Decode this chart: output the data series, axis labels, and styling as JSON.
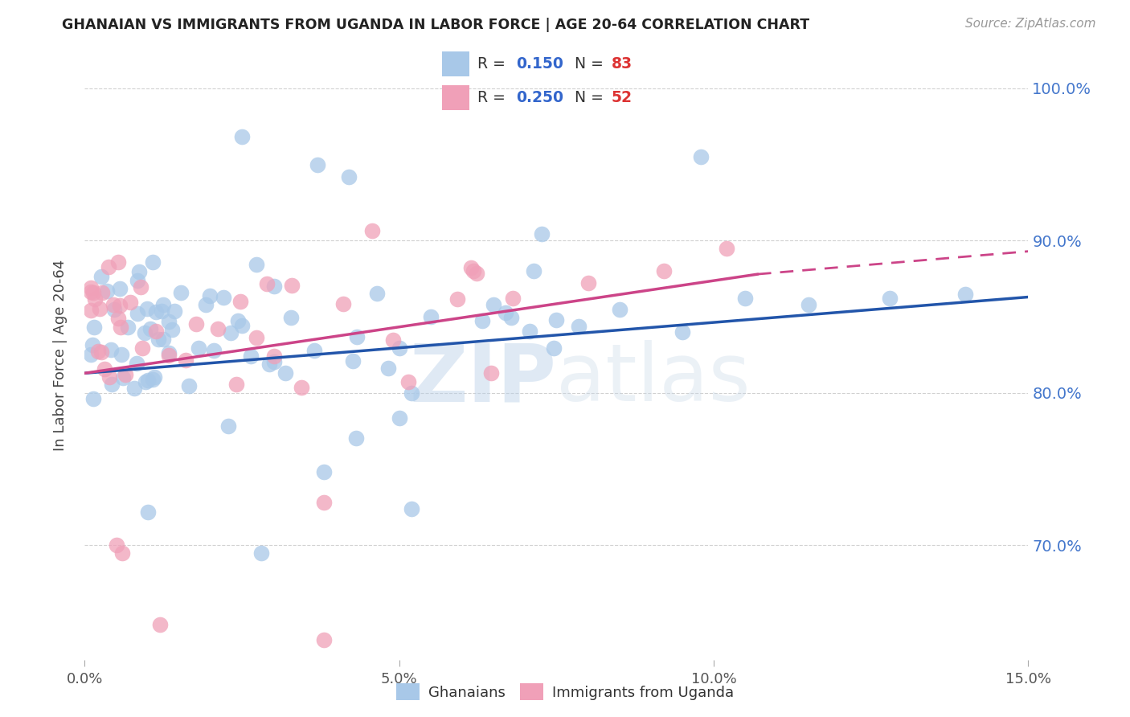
{
  "title": "GHANAIAN VS IMMIGRANTS FROM UGANDA IN LABOR FORCE | AGE 20-64 CORRELATION CHART",
  "source": "Source: ZipAtlas.com",
  "ylabel": "In Labor Force | Age 20-64",
  "legend_label1": "Ghanaians",
  "legend_label2": "Immigrants from Uganda",
  "r1": 0.15,
  "n1": 83,
  "r2": 0.25,
  "n2": 52,
  "color_blue": "#a8c8e8",
  "color_pink": "#f0a0b8",
  "line_color_blue": "#2255aa",
  "line_color_pink": "#cc4488",
  "watermark_zip": "ZIP",
  "watermark_atlas": "atlas",
  "xmin": 0.0,
  "xmax": 0.15,
  "ymin": 0.625,
  "ymax": 1.025,
  "ytick_vals": [
    0.7,
    0.8,
    0.9,
    1.0
  ],
  "ytick_labels": [
    "70.0%",
    "80.0%",
    "90.0%",
    "100.0%"
  ],
  "xtick_vals": [
    0.0,
    0.05,
    0.1,
    0.15
  ],
  "xtick_labels": [
    "0.0%",
    "5.0%",
    "10.0%",
    "15.0%"
  ],
  "blue_line_y0": 0.813,
  "blue_line_y1": 0.863,
  "pink_line_y0": 0.813,
  "pink_line_y1": 0.893
}
